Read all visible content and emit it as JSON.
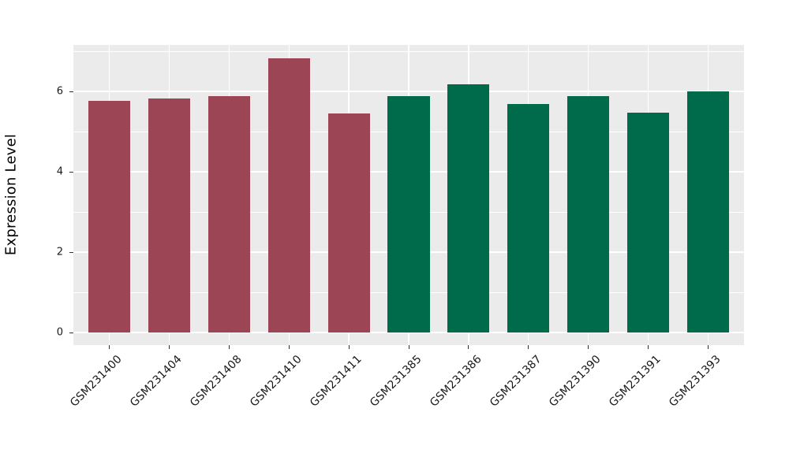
{
  "figure": {
    "background_color": "#FFFFFF",
    "panel_background_color": "#EBEBEB",
    "grid_color": "#FFFFFF",
    "tick_mark_color": "#333333",
    "axis_text_color": "#1A1A1A",
    "axis_title_color": "#000000",
    "group1_bar_color": "#9C4555",
    "group2_bar_color": "#006B4B"
  },
  "chart_data": {
    "type": "bar",
    "title": "",
    "xlabel": "",
    "ylabel": "Expression Level",
    "categories": [
      "GSM231400",
      "GSM231404",
      "GSM231408",
      "GSM231410",
      "GSM231411",
      "GSM231385",
      "GSM231386",
      "GSM231387",
      "GSM231390",
      "GSM231391",
      "GSM231393"
    ],
    "values": [
      5.76,
      5.82,
      5.88,
      6.83,
      5.45,
      5.88,
      6.18,
      5.69,
      5.88,
      5.47,
      6.01
    ],
    "bar_colors": [
      "#9C4555",
      "#9C4555",
      "#9C4555",
      "#9C4555",
      "#9C4555",
      "#006B4B",
      "#006B4B",
      "#006B4B",
      "#006B4B",
      "#006B4B",
      "#006B4B"
    ],
    "y_ticks": [
      0,
      2,
      4,
      6
    ],
    "y_tick_labels": [
      "0",
      "2",
      "4",
      "6"
    ],
    "y_minor_ticks": [
      1,
      3,
      5,
      7
    ],
    "ylim": [
      -0.31,
      7.16
    ],
    "bar_width_fraction": 0.7,
    "x_label_rotation_deg": 45,
    "grid": true,
    "legend_position": "none"
  }
}
